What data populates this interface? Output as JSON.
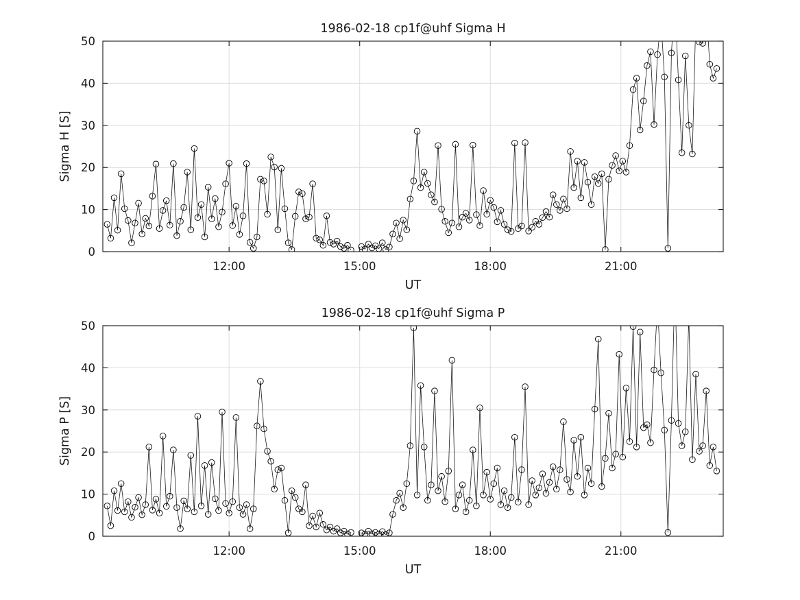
{
  "figure": {
    "background": "#ffffff"
  },
  "style": {
    "grid_color": "#dcdcdc",
    "axis_color": "#1a1a1a",
    "text_color": "#1a1a1a",
    "marker_color": "#000000",
    "line_color": "#1a1a1a"
  },
  "chart_data": [
    {
      "type": "line",
      "marker": "open-circle",
      "title": "1986-02-18  cp1f@uhf Sigma H",
      "xlabel": "UT",
      "ylabel": "Sigma H [S]",
      "xlim": [
        9.1,
        23.35
      ],
      "ylim": [
        0,
        50
      ],
      "yticks": [
        0,
        10,
        20,
        30,
        40,
        50
      ],
      "xtick_values": [
        12,
        15,
        18,
        21
      ],
      "xtick_labels": [
        "12:00",
        "15:00",
        "18:00",
        "21:00"
      ],
      "grid": true,
      "x_unit": "hours UT",
      "x_start": 9.2,
      "x_step": 0.08,
      "values": [
        6.5,
        3.2,
        12.8,
        5.1,
        18.5,
        10.2,
        7.4,
        2.1,
        6.8,
        11.5,
        4.2,
        7.9,
        6.1,
        13.2,
        20.8,
        5.5,
        9.8,
        12.1,
        6.3,
        20.9,
        3.8,
        7.2,
        10.5,
        18.9,
        5.2,
        24.5,
        8.1,
        11.2,
        3.5,
        15.3,
        7.8,
        12.6,
        5.9,
        9.4,
        16.1,
        21.0,
        6.2,
        10.8,
        4.1,
        8.5,
        20.9,
        2.2,
        0.8,
        3.5,
        17.2,
        16.8,
        8.9,
        22.5,
        20.1,
        5.2,
        19.8,
        10.2,
        2.1,
        0.5,
        8.4,
        14.2,
        13.8,
        7.8,
        8.2,
        16.1,
        3.2,
        2.8,
        1.5,
        8.5,
        2.2,
        1.8,
        2.5,
        1.2,
        0.8,
        1.5,
        0.4,
        null,
        null,
        1.2,
        0.6,
        1.8,
        0.9,
        1.4,
        0.7,
        2.1,
        0.5,
        1.1,
        4.2,
        6.8,
        3.1,
        7.5,
        5.2,
        12.5,
        16.8,
        28.6,
        15.2,
        18.9,
        16.2,
        13.5,
        11.8,
        25.2,
        10.1,
        7.2,
        4.5,
        6.8,
        25.5,
        5.9,
        8.2,
        9.1,
        7.5,
        25.3,
        8.8,
        6.2,
        14.5,
        8.9,
        12.2,
        10.5,
        7.1,
        9.8,
        6.5,
        5.2,
        4.8,
        25.8,
        5.5,
        6.1,
        25.9,
        4.9,
        5.8,
        7.2,
        6.5,
        8.1,
        9.5,
        8.2,
        13.5,
        11.2,
        9.8,
        12.5,
        10.2,
        23.8,
        15.2,
        21.5,
        12.8,
        21.2,
        16.5,
        11.2,
        17.8,
        16.2,
        18.5,
        0.5,
        17.2,
        20.5,
        22.8,
        19.2,
        21.5,
        18.9,
        25.2,
        38.5,
        41.2,
        28.9,
        35.8,
        44.2,
        47.5,
        30.2,
        46.8,
        55.0,
        41.5,
        0.8,
        47.2,
        60.0,
        40.8,
        23.5,
        46.5,
        30.0,
        23.2,
        55.0,
        49.8,
        49.5,
        58.0,
        44.5,
        41.2,
        43.5
      ]
    },
    {
      "type": "line",
      "marker": "open-circle",
      "title": "1986-02-18  cp1f@uhf Sigma P",
      "xlabel": "UT",
      "ylabel": "Sigma P [S]",
      "xlim": [
        9.1,
        23.35
      ],
      "ylim": [
        0,
        50
      ],
      "yticks": [
        0,
        10,
        20,
        30,
        40,
        50
      ],
      "xtick_values": [
        12,
        15,
        18,
        21
      ],
      "xtick_labels": [
        "12:00",
        "15:00",
        "18:00",
        "21:00"
      ],
      "grid": true,
      "x_unit": "hours UT",
      "x_start": 9.2,
      "x_step": 0.08,
      "values": [
        7.2,
        2.5,
        10.8,
        6.1,
        12.5,
        5.8,
        8.2,
        4.5,
        6.9,
        9.2,
        5.1,
        7.5,
        21.2,
        6.2,
        8.8,
        5.5,
        23.8,
        7.1,
        9.5,
        20.5,
        6.8,
        1.8,
        8.4,
        6.5,
        19.2,
        5.8,
        28.5,
        7.2,
        16.8,
        5.2,
        17.5,
        8.9,
        6.1,
        29.5,
        7.8,
        5.5,
        8.2,
        28.2,
        6.8,
        5.2,
        7.5,
        1.8,
        6.5,
        26.2,
        36.8,
        25.5,
        20.2,
        17.8,
        11.2,
        15.8,
        16.2,
        8.5,
        0.8,
        10.8,
        9.2,
        6.5,
        5.8,
        12.2,
        2.5,
        4.8,
        2.2,
        5.5,
        2.8,
        1.5,
        2.2,
        1.2,
        1.8,
        0.8,
        1.2,
        0.5,
        0.9,
        null,
        null,
        0.8,
        0.5,
        1.2,
        0.6,
        0.9,
        0.5,
        1.1,
        0.4,
        0.8,
        5.2,
        8.5,
        10.2,
        6.8,
        12.5,
        21.5,
        49.5,
        9.8,
        35.8,
        21.2,
        8.5,
        12.2,
        34.5,
        10.8,
        14.2,
        8.2,
        15.5,
        41.8,
        6.5,
        9.8,
        12.2,
        5.8,
        8.5,
        20.5,
        7.2,
        30.5,
        9.8,
        15.2,
        8.8,
        12.5,
        16.2,
        7.5,
        10.8,
        6.8,
        9.2,
        23.5,
        8.1,
        15.8,
        35.5,
        7.5,
        13.2,
        9.8,
        11.5,
        14.8,
        10.2,
        12.8,
        16.5,
        11.2,
        15.8,
        27.2,
        13.5,
        10.5,
        22.8,
        14.2,
        23.5,
        9.8,
        16.2,
        12.5,
        30.2,
        46.8,
        11.8,
        18.5,
        29.2,
        16.2,
        19.5,
        43.2,
        18.8,
        35.2,
        22.5,
        49.8,
        21.2,
        48.5,
        25.8,
        26.5,
        22.2,
        39.5,
        55.0,
        38.8,
        25.2,
        0.9,
        27.5,
        60.0,
        26.8,
        21.5,
        24.8,
        52.0,
        18.2,
        38.5,
        20.2,
        21.5,
        34.5,
        16.8,
        21.2,
        15.5
      ]
    }
  ]
}
